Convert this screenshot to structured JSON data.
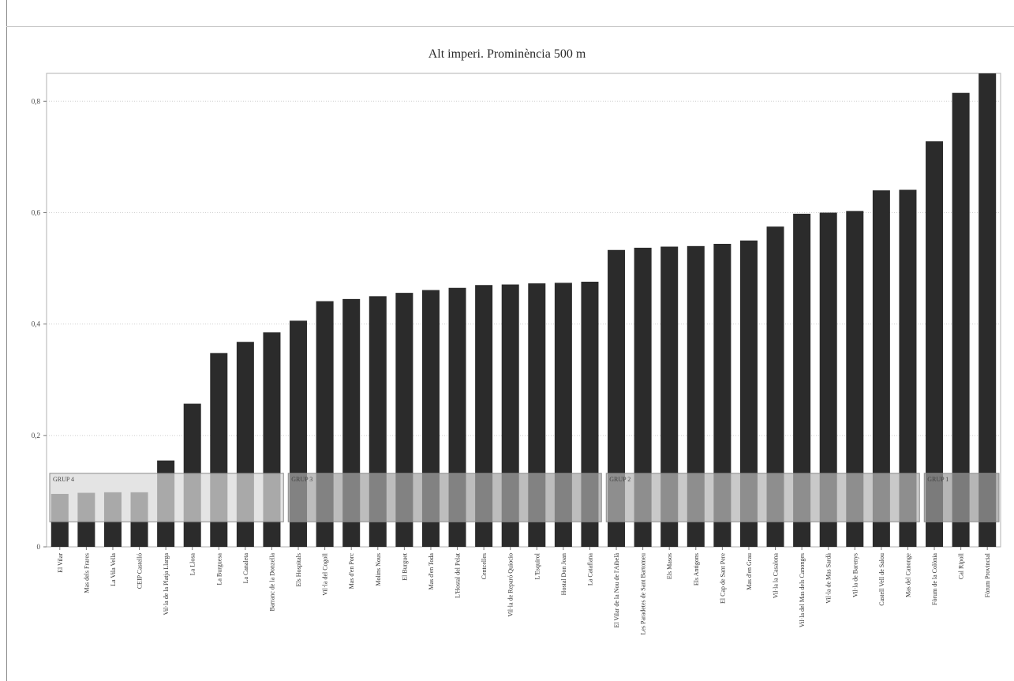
{
  "chart_data": {
    "type": "bar",
    "title": "Alt imperi. Prominència 500 m",
    "xlabel": "",
    "ylabel": "",
    "ylim": [
      0,
      0.85
    ],
    "yticks": [
      "0",
      "0,2",
      "0,4",
      "0,6",
      "0,8"
    ],
    "grid": true,
    "bar_color": "#2b2b2b",
    "categories": [
      "El Vilar",
      "Mas dels Frares",
      "La Vila Vella",
      "CEIP Castelló",
      "Vil·la de la Platja Llarga",
      "La Llosa",
      "La Burguesa",
      "La Canaleta",
      "Barranc de la Donzella",
      "Els Hospitals",
      "Vil·la del Cogoll",
      "Mas d'en Porc",
      "Molins Nous",
      "El Burguet",
      "Mas d'en Toda",
      "L'Hostal del Pelat",
      "Centcelles",
      "Vil·la de Reparó Quiocio",
      "L'Esquirol",
      "Hostal Don Joan",
      "La Cataflana",
      "El Vilar de la Nou de l'Aibelà",
      "Les Paradetes de Sant Bartomeu",
      "Els Masos",
      "Els Antigons",
      "El Cap de Sant Pere",
      "Mas d'en Grau",
      "Vil·la la Casalona",
      "Vil·la del Mas dels Canonges",
      "Vil·la de Mas Sardà",
      "Vil·la de Barenys",
      "Castell Vell de Salou",
      "Mas del Canonge",
      "Fòrum de la Colònia",
      "Cal Ripoll",
      "Fòrum Provincial"
    ],
    "values": [
      0.095,
      0.097,
      0.098,
      0.098,
      0.155,
      0.257,
      0.348,
      0.368,
      0.385,
      0.406,
      0.441,
      0.445,
      0.45,
      0.456,
      0.461,
      0.465,
      0.47,
      0.471,
      0.473,
      0.474,
      0.476,
      0.533,
      0.537,
      0.539,
      0.54,
      0.544,
      0.55,
      0.575,
      0.598,
      0.6,
      0.603,
      0.64,
      0.641,
      0.728,
      0.815,
      0.85
    ],
    "groups": [
      {
        "label": "GRUP 4",
        "from": 0,
        "to": 8,
        "shade": "#d9d9d9"
      },
      {
        "label": "GRUP 3",
        "from": 9,
        "to": 20,
        "shade": "#a3a3a3"
      },
      {
        "label": "GRUP 2",
        "from": 21,
        "to": 32,
        "shade": "#b4b4b4"
      },
      {
        "label": "GRUP 1",
        "from": 33,
        "to": 35,
        "shade": "#9a9a9a"
      }
    ],
    "group_band_range": [
      0.045,
      0.132
    ]
  }
}
